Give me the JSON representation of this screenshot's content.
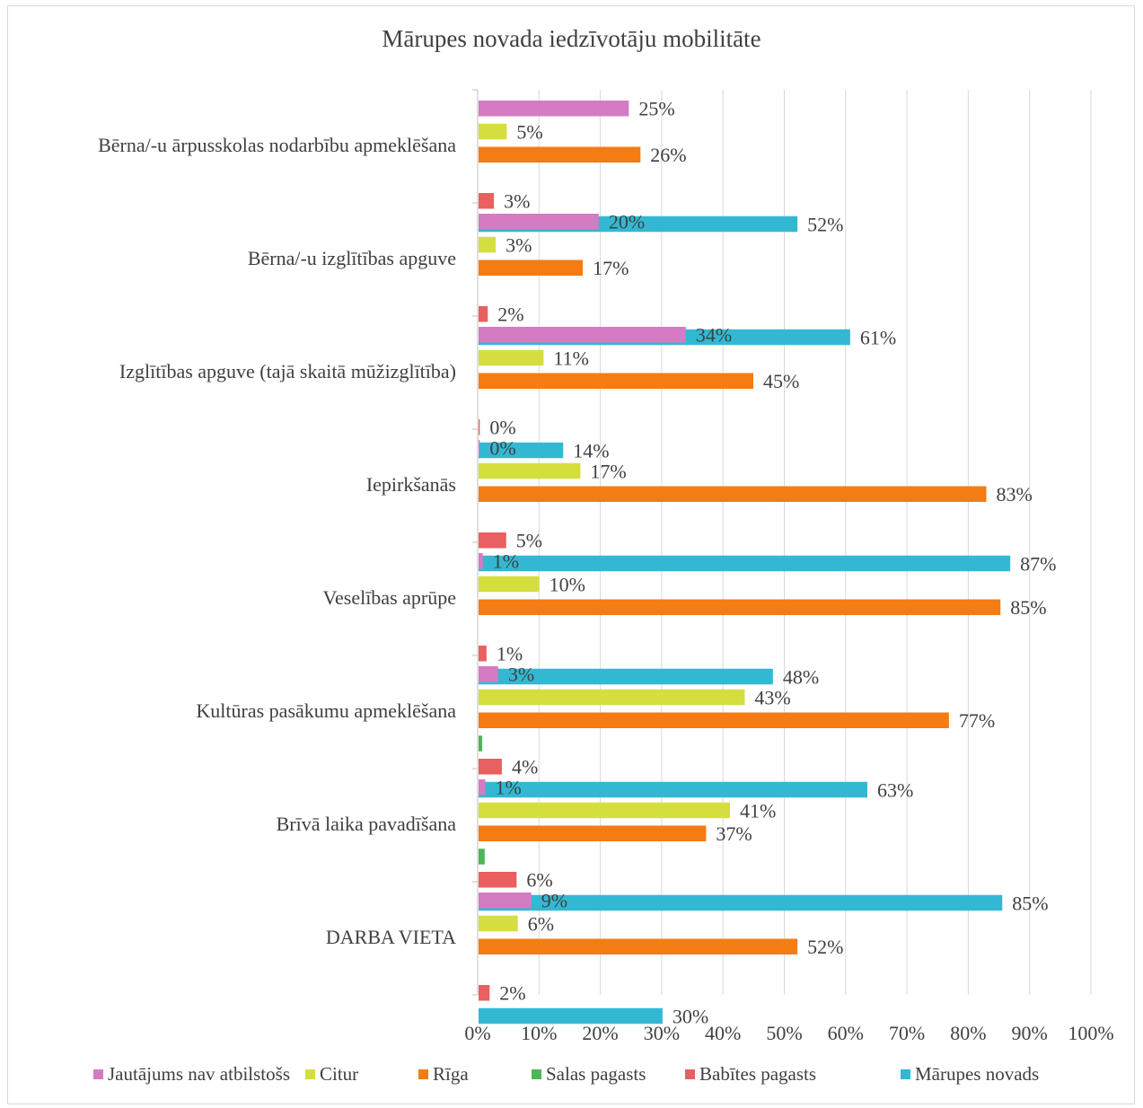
{
  "chart_data": {
    "type": "bar",
    "orientation": "horizontal",
    "title": "Mārupes novada iedzīvotāju mobilitāte",
    "xlabel": "",
    "ylabel": "",
    "xlim": [
      0,
      100
    ],
    "x_ticks": [
      "0%",
      "10%",
      "20%",
      "30%",
      "40%",
      "50%",
      "60%",
      "70%",
      "80%",
      "90%",
      "100%"
    ],
    "grid": true,
    "legend_position": "bottom",
    "categories": [
      "Bērna/-u ārpusskolas nodarbību apmeklēšana",
      "Bērna/-u izglītības apguve",
      "Izglītības apguve (tajā skaitā mūžizglītība)",
      "Iepirkšanās",
      "Veselības aprūpe",
      "Kultūras pasākumu apmeklēšana",
      "Brīvā laika pavadīšana",
      "DARBA VIETA"
    ],
    "series": [
      {
        "name": "Jautājums nav atbilstošs",
        "color": "#d57bc3",
        "values": [
          24.5,
          19.6,
          33.8,
          0.2,
          0.7,
          3.2,
          1.1,
          8.6
        ],
        "labels": [
          "25%",
          "20%",
          "34%",
          "0%",
          "1%",
          "3%",
          "1%",
          "9%"
        ]
      },
      {
        "name": "Citur",
        "color": "#d4df3f",
        "values": [
          4.6,
          2.8,
          10.6,
          16.6,
          9.9,
          43.4,
          41.0,
          6.4
        ],
        "labels": [
          "5%",
          "3%",
          "11%",
          "17%",
          "10%",
          "43%",
          "41%",
          "6%"
        ]
      },
      {
        "name": "Rīga",
        "color": "#f47c13",
        "values": [
          26.4,
          17.0,
          44.8,
          82.8,
          85.1,
          76.7,
          37.1,
          52.0
        ],
        "labels": [
          "26%",
          "17%",
          "45%",
          "83%",
          "85%",
          "77%",
          "37%",
          "52%"
        ]
      },
      {
        "name": "Salas pagasts",
        "color": "#4bb75a",
        "values": [
          0,
          0,
          0,
          0,
          0,
          0.6,
          1.0,
          0
        ],
        "labels": [
          "",
          "",
          "",
          "",
          "",
          "",
          "",
          ""
        ]
      },
      {
        "name": "Babītes pagasts",
        "color": "#e8605f",
        "values": [
          2.5,
          1.5,
          0.2,
          4.5,
          1.3,
          3.8,
          6.2,
          1.8
        ],
        "labels": [
          "3%",
          "2%",
          "0%",
          "5%",
          "1%",
          "4%",
          "6%",
          "2%"
        ]
      },
      {
        "name": "Mārupes novads",
        "color": "#33b8d3",
        "values": [
          52.0,
          60.6,
          13.8,
          86.7,
          48.0,
          63.4,
          85.4,
          30.0
        ],
        "labels": [
          "52%",
          "61%",
          "14%",
          "87%",
          "48%",
          "63%",
          "85%",
          "30%"
        ]
      }
    ]
  }
}
